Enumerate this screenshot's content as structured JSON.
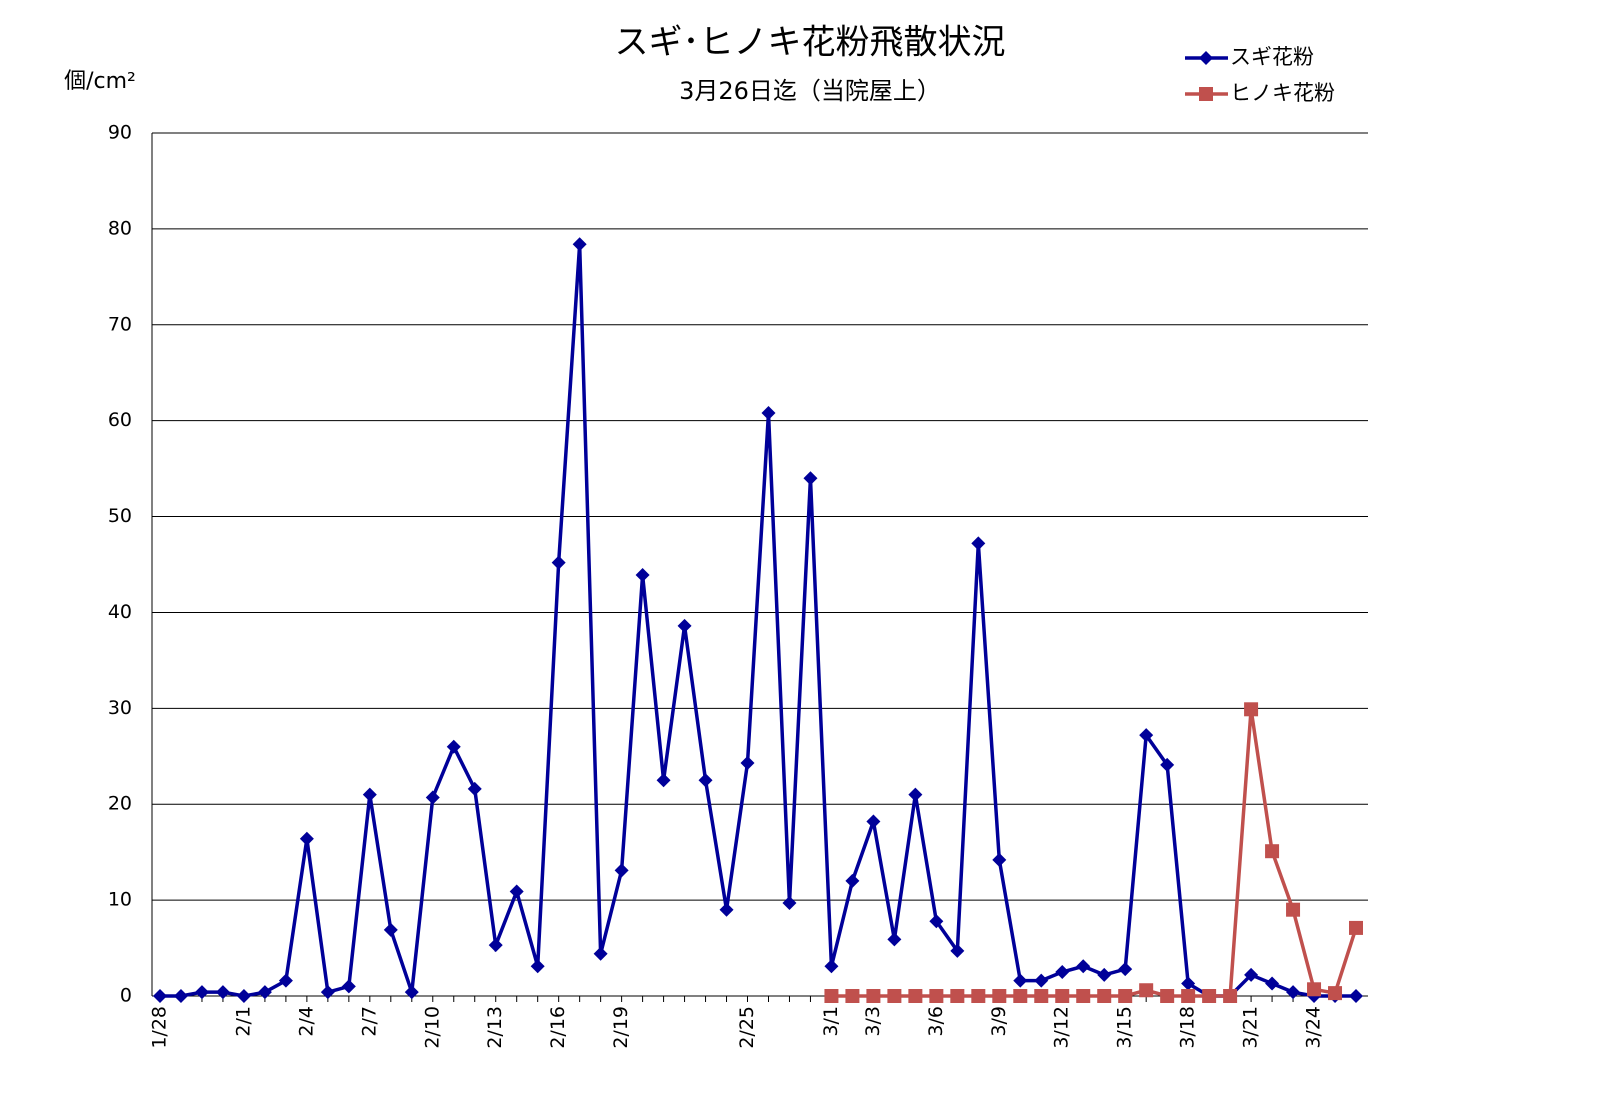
{
  "chart_data": {
    "type": "line",
    "title": "スギ･ヒノキ花粉飛散状況",
    "subtitle": "3月26日迄（当院屋上）",
    "y_label": "個/cm²",
    "categories": [
      "1/28",
      null,
      null,
      null,
      "2/1",
      null,
      null,
      "2/4",
      null,
      null,
      "2/7",
      null,
      null,
      "2/10",
      null,
      null,
      "2/13",
      null,
      null,
      "2/16",
      null,
      null,
      "2/19",
      null,
      null,
      null,
      null,
      null,
      "2/25",
      null,
      null,
      null,
      "3/1",
      null,
      "3/3",
      null,
      null,
      "3/6",
      null,
      null,
      "3/9",
      null,
      null,
      "3/12",
      null,
      null,
      "3/15",
      null,
      null,
      "3/18",
      null,
      null,
      "3/21",
      null,
      null,
      "3/24",
      null,
      null
    ],
    "series": [
      {
        "name": "スギ花粉",
        "color": "#000099",
        "marker": "diamond",
        "values": [
          0,
          0,
          0.4,
          0.4,
          0,
          0.4,
          1.6,
          16.4,
          0.4,
          1.0,
          21.0,
          6.9,
          0.4,
          20.7,
          26.0,
          21.6,
          5.3,
          10.9,
          3.1,
          45.2,
          78.4,
          4.4,
          13.1,
          43.9,
          22.5,
          38.6,
          22.5,
          9.0,
          24.3,
          60.8,
          9.7,
          54.0,
          3.1,
          12.0,
          18.2,
          5.9,
          21.0,
          7.8,
          4.7,
          47.2,
          14.2,
          1.6,
          1.6,
          2.5,
          3.1,
          2.2,
          2.8,
          27.2,
          24.1,
          1.3,
          0,
          0,
          2.2,
          1.3,
          0.4,
          0,
          0,
          0
        ]
      },
      {
        "name": "ヒノキ花粉",
        "color": "#c0504d",
        "marker": "square",
        "values": [
          null,
          null,
          null,
          null,
          null,
          null,
          null,
          null,
          null,
          null,
          null,
          null,
          null,
          null,
          null,
          null,
          null,
          null,
          null,
          null,
          null,
          null,
          null,
          null,
          null,
          null,
          null,
          null,
          null,
          null,
          null,
          null,
          0,
          0,
          0,
          0,
          0,
          0,
          0,
          0,
          0,
          0,
          0,
          0,
          0,
          0,
          0,
          0.6,
          0,
          0,
          0,
          0,
          29.9,
          15.1,
          9.0,
          0.7,
          0.3,
          7.1
        ]
      }
    ],
    "ylim": [
      0,
      90
    ],
    "yticks": [
      0,
      10,
      20,
      30,
      40,
      50,
      60,
      70,
      80,
      90
    ],
    "grid": true
  }
}
